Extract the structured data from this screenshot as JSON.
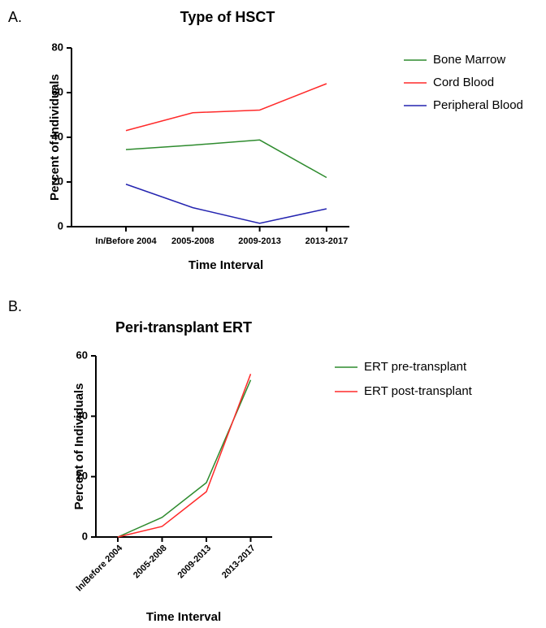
{
  "chart_data": [
    {
      "type": "line",
      "label": "A.",
      "title": "Type of HSCT",
      "x_label": "Time Interval",
      "y_label": "Percent of Individuals",
      "categories": [
        "In/Before 2004",
        "2005-2008",
        "2009-2013",
        "2013-2017"
      ],
      "series": [
        {
          "name": "Bone Marrow",
          "color": "#2e8b2e",
          "values": [
            34.5,
            36.5,
            38.8,
            22
          ]
        },
        {
          "name": "Cord Blood",
          "color": "#ff2a2a",
          "values": [
            43,
            51,
            52.2,
            64
          ]
        },
        {
          "name": "Peripheral Blood",
          "color": "#2424b0",
          "values": [
            19,
            8.5,
            1.5,
            8
          ]
        }
      ],
      "ylim": [
        0,
        80
      ],
      "yticks": [
        0,
        20,
        40,
        60,
        80
      ],
      "legend": "right"
    },
    {
      "type": "line",
      "label": "B.",
      "title": "Peri-transplant ERT",
      "x_label": "Time Interval",
      "y_label": "Percent of Individuals",
      "categories": [
        "In/Before 2004",
        "2005-2008",
        "2009-2013",
        "2013-2017"
      ],
      "series": [
        {
          "name": "ERT pre-transplant",
          "color": "#2e8b2e",
          "values": [
            0,
            6.5,
            18,
            52
          ]
        },
        {
          "name": "ERT post-transplant",
          "color": "#ff2a2a",
          "values": [
            0,
            3.5,
            15,
            54
          ]
        }
      ],
      "ylim": [
        0,
        60
      ],
      "yticks": [
        0,
        20,
        40,
        60
      ],
      "legend": "right"
    }
  ]
}
